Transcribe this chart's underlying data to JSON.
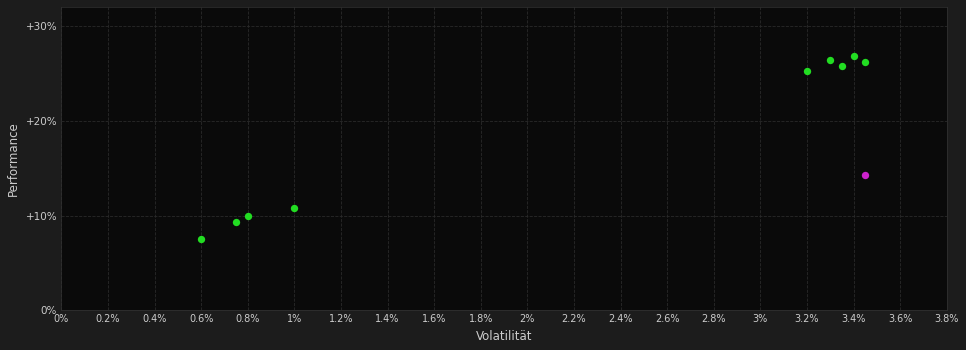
{
  "background_color": "#1c1c1c",
  "plot_bg_color": "#0a0a0a",
  "text_color": "#cccccc",
  "xlabel": "Volatilität",
  "ylabel": "Performance",
  "xlim": [
    0.0,
    0.038
  ],
  "ylim": [
    0.0,
    0.32
  ],
  "xticks": [
    0.0,
    0.002,
    0.004,
    0.006,
    0.008,
    0.01,
    0.012,
    0.014,
    0.016,
    0.018,
    0.02,
    0.022,
    0.024,
    0.026,
    0.028,
    0.03,
    0.032,
    0.034,
    0.036,
    0.038
  ],
  "yticks": [
    0.0,
    0.1,
    0.2,
    0.3
  ],
  "ytick_labels": [
    "0%",
    "+10%",
    "+20%",
    "+30%"
  ],
  "xtick_labels": [
    "0%",
    "0.2%",
    "0.4%",
    "0.6%",
    "0.8%",
    "1%",
    "1.2%",
    "1.4%",
    "1.6%",
    "1.8%",
    "2%",
    "2.2%",
    "2.4%",
    "2.6%",
    "2.8%",
    "3%",
    "3.2%",
    "3.4%",
    "3.6%",
    "3.8%"
  ],
  "green_points_xy": [
    [
      0.006,
      0.075
    ],
    [
      0.0075,
      0.093
    ],
    [
      0.008,
      0.1
    ],
    [
      0.01,
      0.108
    ],
    [
      0.032,
      0.252
    ],
    [
      0.033,
      0.264
    ],
    [
      0.034,
      0.268
    ],
    [
      0.0335,
      0.258
    ],
    [
      0.0345,
      0.262
    ]
  ],
  "magenta_points_xy": [
    [
      0.0345,
      0.143
    ]
  ],
  "point_size": 28,
  "green_color": "#22dd22",
  "magenta_color": "#cc22cc"
}
